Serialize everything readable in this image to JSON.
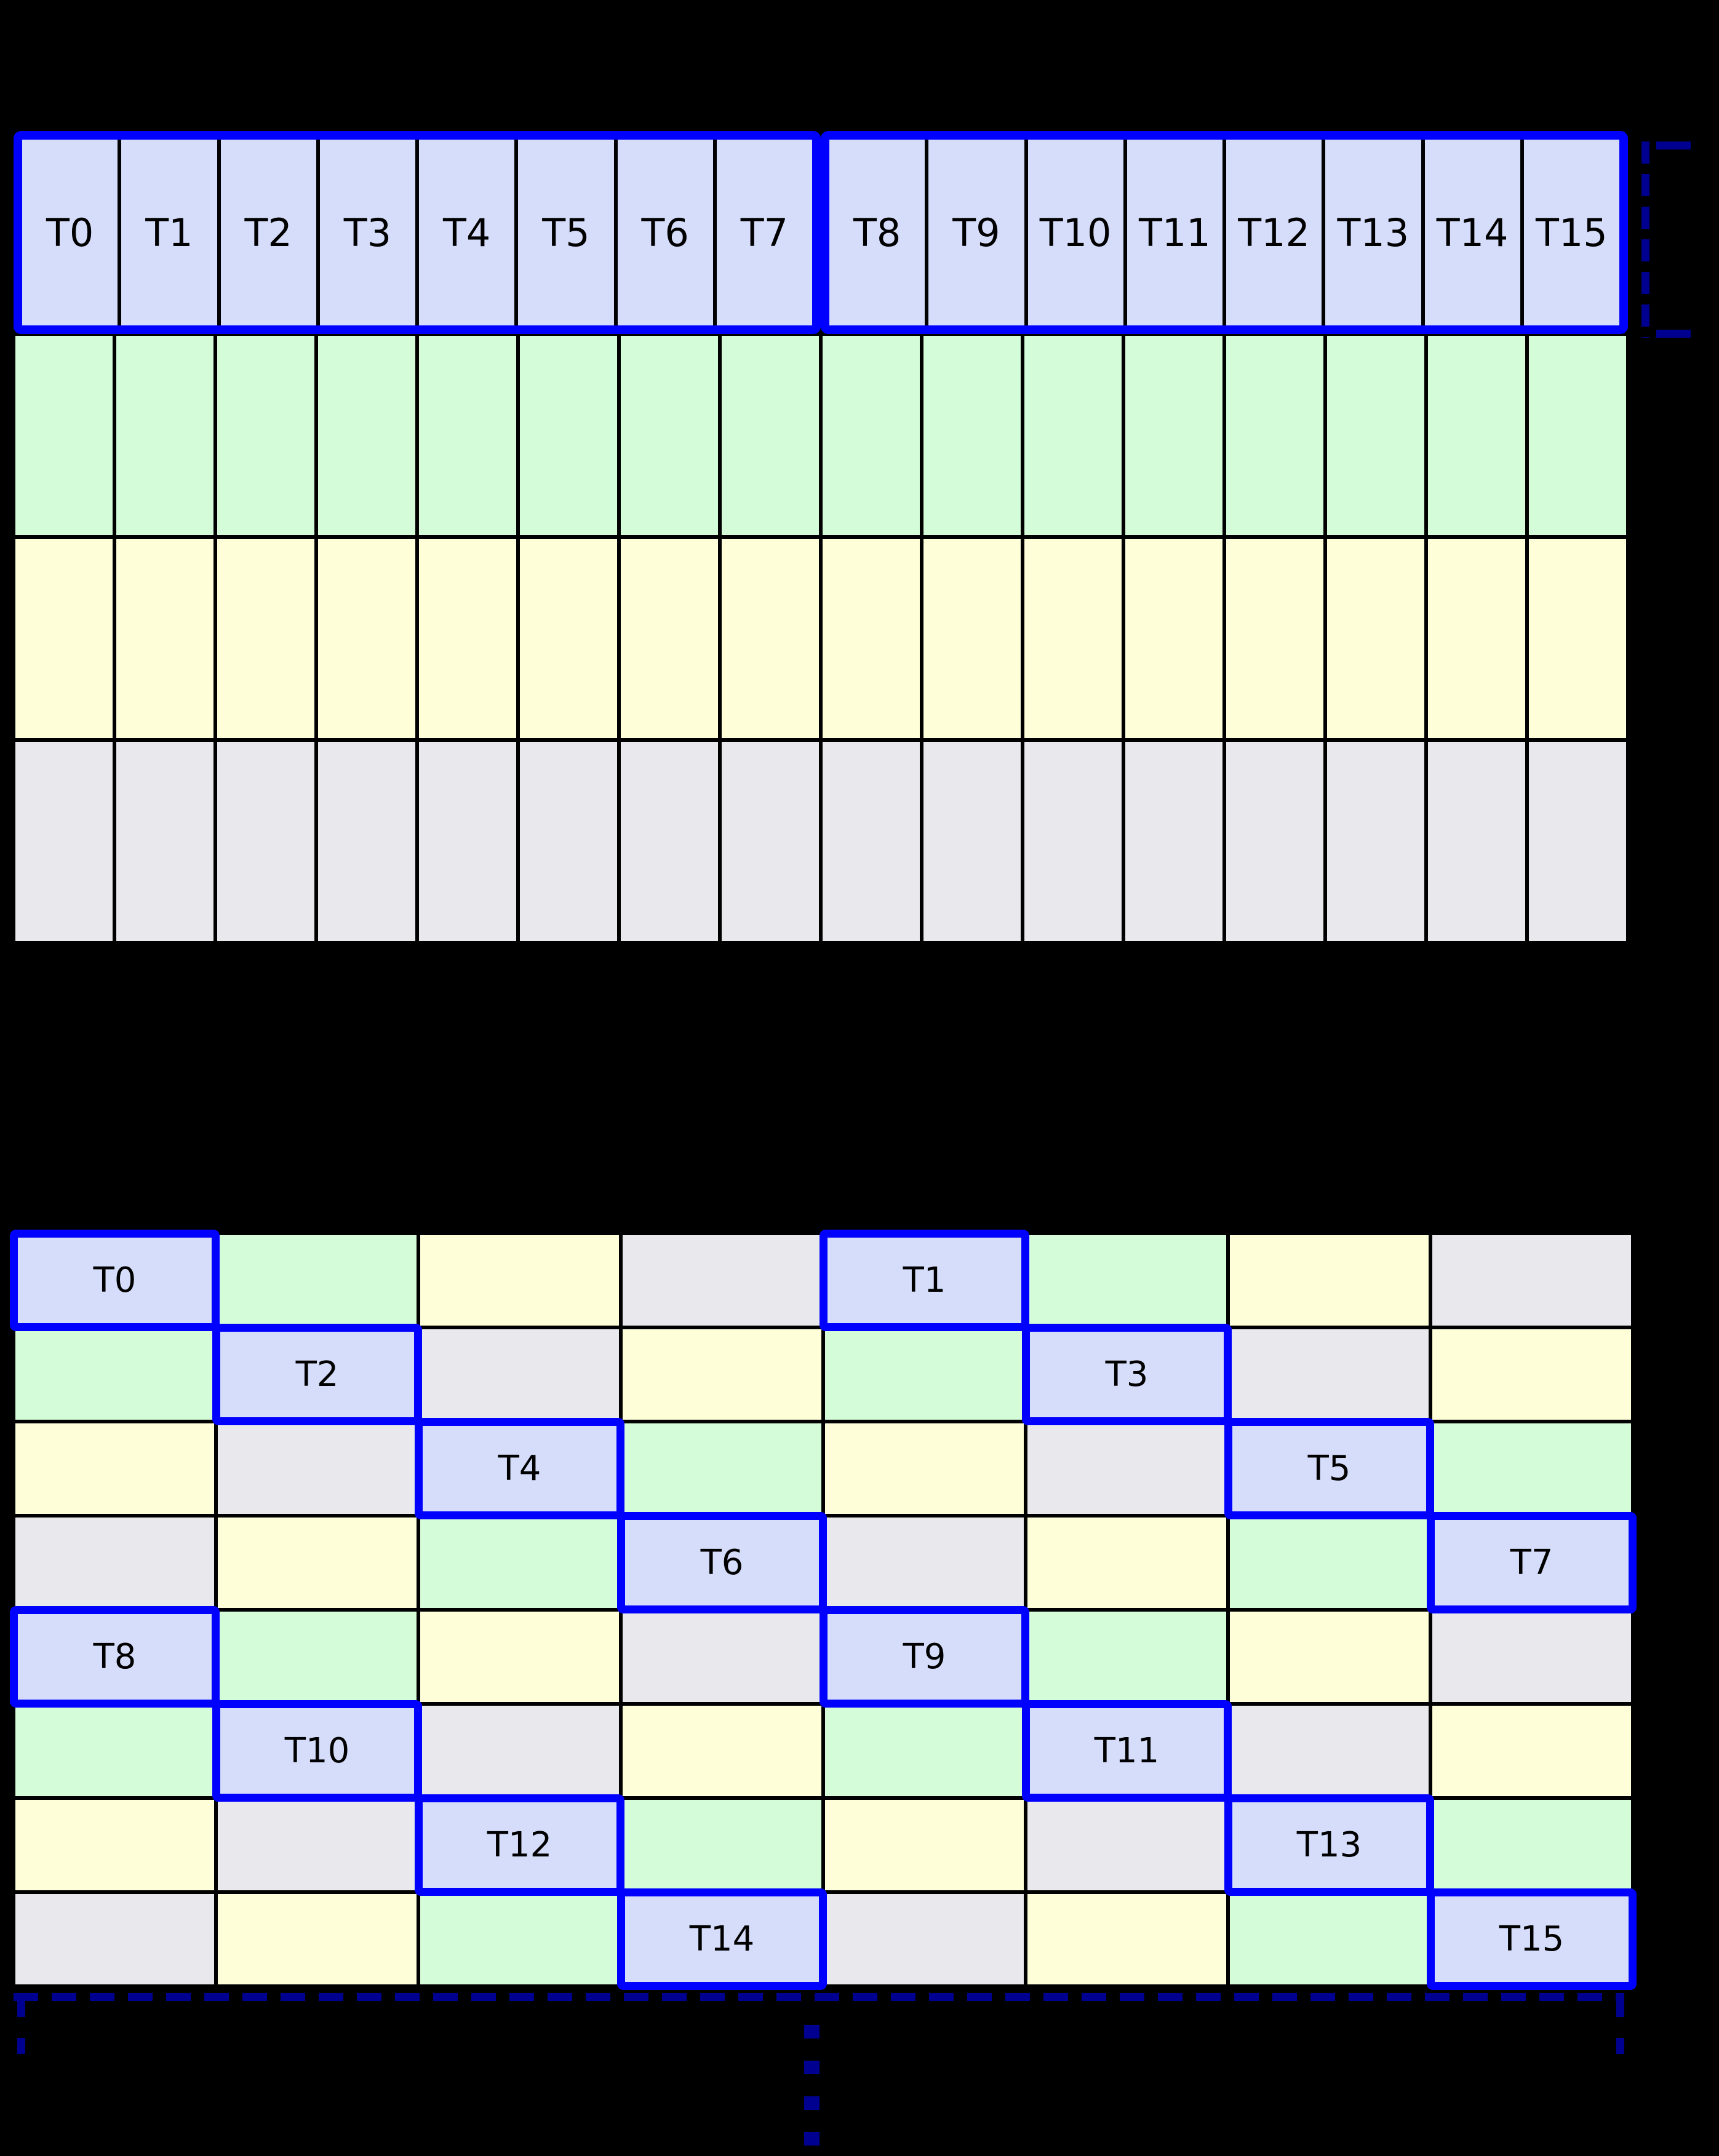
{
  "diagram": {
    "background": "#000000",
    "grid_line_color": "#000000",
    "highlight_border_color": "#0000ff",
    "bracket_color": "#000090",
    "label_color": "#000000",
    "palette": {
      "thread": "#d5ddfa",
      "green": "#d5fcd8",
      "yellow": "#feffd8",
      "gray": "#e9e8ec"
    },
    "top_grid": {
      "num_columns": 16,
      "num_rows": 4,
      "thread_labels": [
        "T0",
        "T1",
        "T2",
        "T3",
        "T4",
        "T5",
        "T6",
        "T7",
        "T8",
        "T9",
        "T10",
        "T11",
        "T12",
        "T13",
        "T14",
        "T15"
      ],
      "row_color_keys": [
        "thread",
        "green",
        "yellow",
        "gray"
      ],
      "highlight_groups": [
        [
          0,
          7
        ],
        [
          8,
          15
        ]
      ]
    },
    "bottom_grid": {
      "num_columns": 8,
      "num_rows": 8,
      "color_pattern": [
        [
          "thread",
          "green",
          "yellow",
          "gray",
          "thread",
          "green",
          "yellow",
          "gray"
        ],
        [
          "green",
          "thread",
          "gray",
          "yellow",
          "green",
          "thread",
          "gray",
          "yellow"
        ],
        [
          "yellow",
          "gray",
          "thread",
          "green",
          "yellow",
          "gray",
          "thread",
          "green"
        ],
        [
          "gray",
          "yellow",
          "green",
          "thread",
          "gray",
          "yellow",
          "green",
          "thread"
        ],
        [
          "thread",
          "green",
          "yellow",
          "gray",
          "thread",
          "green",
          "yellow",
          "gray"
        ],
        [
          "green",
          "thread",
          "gray",
          "yellow",
          "green",
          "thread",
          "gray",
          "yellow"
        ],
        [
          "yellow",
          "gray",
          "thread",
          "green",
          "yellow",
          "gray",
          "thread",
          "green"
        ],
        [
          "gray",
          "yellow",
          "green",
          "thread",
          "gray",
          "yellow",
          "green",
          "thread"
        ]
      ],
      "highlights": [
        {
          "label": "T0",
          "row": 0,
          "col": 0
        },
        {
          "label": "T1",
          "row": 0,
          "col": 4
        },
        {
          "label": "T2",
          "row": 1,
          "col": 1
        },
        {
          "label": "T3",
          "row": 1,
          "col": 5
        },
        {
          "label": "T4",
          "row": 2,
          "col": 2
        },
        {
          "label": "T5",
          "row": 2,
          "col": 6
        },
        {
          "label": "T6",
          "row": 3,
          "col": 3
        },
        {
          "label": "T7",
          "row": 3,
          "col": 7
        },
        {
          "label": "T8",
          "row": 4,
          "col": 0
        },
        {
          "label": "T9",
          "row": 4,
          "col": 4
        },
        {
          "label": "T10",
          "row": 5,
          "col": 1
        },
        {
          "label": "T11",
          "row": 5,
          "col": 5
        },
        {
          "label": "T12",
          "row": 6,
          "col": 2
        },
        {
          "label": "T13",
          "row": 6,
          "col": 6
        },
        {
          "label": "T14",
          "row": 7,
          "col": 3
        },
        {
          "label": "T15",
          "row": 7,
          "col": 7
        }
      ]
    }
  }
}
